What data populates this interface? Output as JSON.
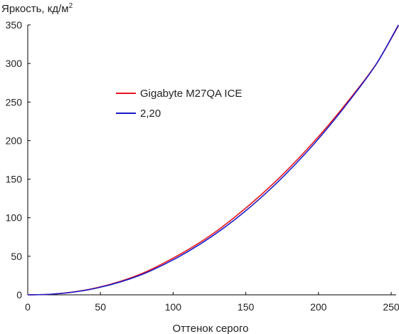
{
  "chart_data": {
    "type": "line",
    "title": "",
    "xlabel": "Оттенок серого",
    "ylabel": "Яркость, кд/м",
    "ylabel_sup": "2",
    "xlim": [
      0,
      255
    ],
    "ylim": [
      0,
      350
    ],
    "x_ticks": [
      0,
      50,
      100,
      150,
      200,
      250
    ],
    "y_ticks": [
      0,
      50,
      100,
      150,
      200,
      250,
      300,
      350
    ],
    "grid": false,
    "legend_position": "upper-left",
    "series": [
      {
        "name": "Gigabyte M27QA ICE",
        "color": "#e8141c",
        "x": [
          0,
          16,
          32,
          48,
          64,
          80,
          96,
          112,
          128,
          144,
          160,
          176,
          192,
          208,
          224,
          240,
          255
        ],
        "y": [
          0,
          0.8,
          3.9,
          9.4,
          17.7,
          28.8,
          43.6,
          60.4,
          80.1,
          103.2,
          128.8,
          157.2,
          188.5,
          222.6,
          259.8,
          300.2,
          349
        ]
      },
      {
        "name": "2,20",
        "color": "#1a1ac8",
        "x": [
          0,
          16,
          32,
          48,
          64,
          80,
          96,
          112,
          128,
          144,
          160,
          176,
          192,
          208,
          224,
          240,
          255
        ],
        "y": [
          0,
          0.8,
          3.7,
          9.0,
          16.9,
          27.5,
          41.5,
          58.1,
          77.5,
          99.9,
          125.3,
          153.8,
          185.4,
          220.3,
          258.4,
          299.9,
          350
        ]
      }
    ]
  }
}
